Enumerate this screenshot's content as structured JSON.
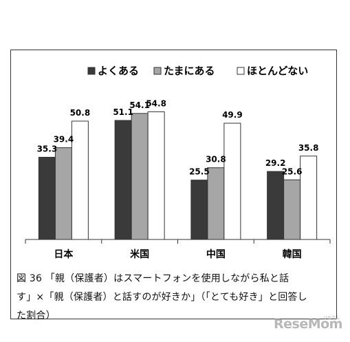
{
  "chart_data": {
    "type": "bar",
    "categories": [
      "日本",
      "米国",
      "中国",
      "韓国"
    ],
    "series": [
      {
        "name": "よくある",
        "values": [
          35.3,
          51.1,
          25.5,
          29.2
        ],
        "color": "#3a3a3a"
      },
      {
        "name": "たまにある",
        "values": [
          39.4,
          54.1,
          30.8,
          25.6
        ],
        "color": "#a6a6a6"
      },
      {
        "name": "ほとんどない",
        "values": [
          50.8,
          54.8,
          49.9,
          35.8
        ],
        "color": "#ffffff"
      }
    ],
    "ylim": [
      0,
      70
    ],
    "grid": false,
    "legend": "top"
  },
  "caption": {
    "line1": "図 36 「親（保護者）はスマートフォンを使用しながら私と話",
    "line2": "す」×「親（保護者）と話すのが好きか」（「とても好き」と回答し",
    "line3": "た割合）"
  },
  "brand": {
    "logo": "ReseMom",
    "sub": "リセマム"
  }
}
